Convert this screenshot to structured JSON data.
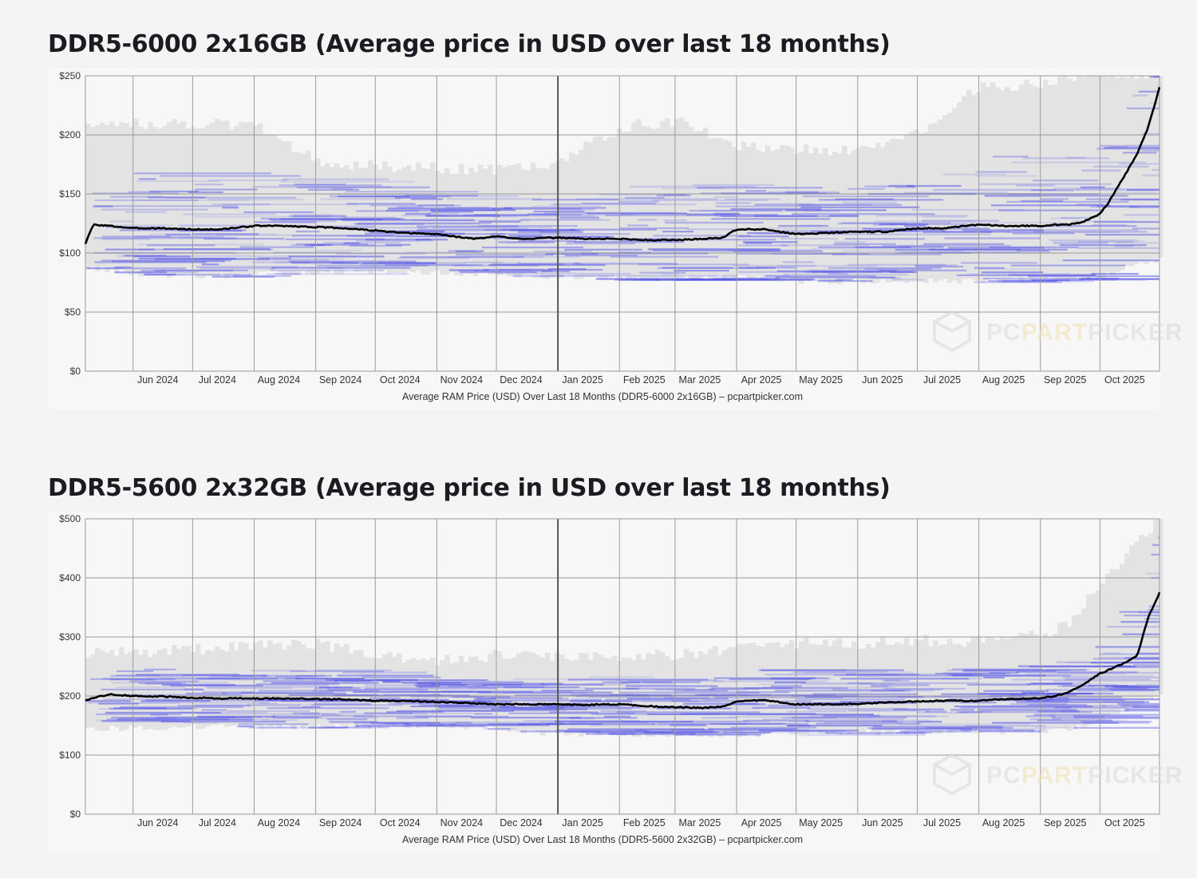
{
  "chart_data": [
    {
      "type": "line",
      "title": "DDR5-6000 2x16GB (Average price in USD over last 18 months)",
      "xlabel": "Average RAM Price (USD) Over Last 18 Months (DDR5-6000 2x16GB) – pcpartpicker.com",
      "ylabel": "",
      "ylim": [
        0,
        250
      ],
      "y_ticks": [
        "$0",
        "$50",
        "$100",
        "$150",
        "$200",
        "$250"
      ],
      "y_tick_values": [
        0,
        50,
        100,
        150,
        200,
        250
      ],
      "x_range": [
        "2024-05-08",
        "2025-10-31"
      ],
      "x_ticks": [
        {
          "date": "2024-06-01",
          "label": "Jun 2024"
        },
        {
          "date": "2024-07-01",
          "label": "Jul 2024"
        },
        {
          "date": "2024-08-01",
          "label": "Aug 2024"
        },
        {
          "date": "2024-09-01",
          "label": "Sep 2024"
        },
        {
          "date": "2024-10-01",
          "label": "Oct 2024"
        },
        {
          "date": "2024-11-01",
          "label": "Nov 2024"
        },
        {
          "date": "2024-12-01",
          "label": "Dec 2024"
        },
        {
          "date": "2025-01-01",
          "label": "Jan 2025"
        },
        {
          "date": "2025-02-01",
          "label": "Feb 2025"
        },
        {
          "date": "2025-03-01",
          "label": "Mar 2025"
        },
        {
          "date": "2025-04-01",
          "label": "Apr 2025"
        },
        {
          "date": "2025-05-01",
          "label": "May 2025"
        },
        {
          "date": "2025-06-01",
          "label": "Jun 2025"
        },
        {
          "date": "2025-07-01",
          "label": "Jul 2025"
        },
        {
          "date": "2025-08-01",
          "label": "Aug 2025"
        },
        {
          "date": "2025-09-01",
          "label": "Sep 2025"
        },
        {
          "date": "2025-10-01",
          "label": "Oct 2025"
        }
      ],
      "grid": true,
      "watermark": "PCPARTPICKER",
      "band_range": {
        "x": [
          "2024-05-08",
          "2024-06-01",
          "2024-07-01",
          "2024-08-01",
          "2024-09-01",
          "2024-10-01",
          "2024-11-01",
          "2024-12-01",
          "2025-01-01",
          "2025-02-01",
          "2025-03-01",
          "2025-04-01",
          "2025-05-01",
          "2025-06-01",
          "2025-07-01",
          "2025-08-01",
          "2025-09-01",
          "2025-09-15",
          "2025-10-01",
          "2025-10-15",
          "2025-10-31"
        ],
        "low": [
          88,
          82,
          80,
          82,
          84,
          84,
          83,
          82,
          80,
          78,
          78,
          80,
          76,
          76,
          76,
          76,
          78,
          78,
          80,
          90,
          95
        ],
        "high": [
          208,
          208,
          208,
          205,
          175,
          172,
          170,
          168,
          175,
          205,
          210,
          190,
          185,
          185,
          200,
          240,
          240,
          248,
          250,
          250,
          250
        ]
      },
      "series": [
        {
          "x": [
            "2024-05-08",
            "2024-05-12",
            "2024-05-20",
            "2024-06-01",
            "2024-06-15",
            "2024-07-01",
            "2024-07-15",
            "2024-08-01",
            "2024-08-15",
            "2024-09-01",
            "2024-09-15",
            "2024-10-01",
            "2024-10-15",
            "2024-11-01",
            "2024-11-10",
            "2024-11-20",
            "2024-12-01",
            "2024-12-15",
            "2025-01-01",
            "2025-01-15",
            "2025-02-01",
            "2025-02-15",
            "2025-03-01",
            "2025-03-15",
            "2025-03-25",
            "2025-04-01",
            "2025-04-15",
            "2025-05-01",
            "2025-05-15",
            "2025-06-01",
            "2025-06-15",
            "2025-07-01",
            "2025-07-15",
            "2025-08-01",
            "2025-08-15",
            "2025-09-01",
            "2025-09-08",
            "2025-09-15",
            "2025-09-22",
            "2025-10-01",
            "2025-10-05",
            "2025-10-10",
            "2025-10-15",
            "2025-10-20",
            "2025-10-25",
            "2025-10-31"
          ],
          "values": [
            108,
            124,
            123,
            121,
            121,
            120,
            120,
            123,
            123,
            122,
            121,
            119,
            117,
            116,
            114,
            112,
            114,
            112,
            113,
            112,
            112,
            111,
            111,
            112,
            113,
            120,
            120,
            116,
            117,
            118,
            118,
            121,
            121,
            124,
            123,
            123,
            124,
            124,
            126,
            133,
            142,
            156,
            170,
            185,
            205,
            240
          ]
        }
      ]
    },
    {
      "type": "line",
      "title": "DDR5-5600 2x32GB (Average price in USD over last 18 months)",
      "xlabel": "Average RAM Price (USD) Over Last 18 Months (DDR5-5600 2x32GB) – pcpartpicker.com",
      "ylabel": "",
      "ylim": [
        0,
        500
      ],
      "y_ticks": [
        "$0",
        "$100",
        "$200",
        "$300",
        "$400",
        "$500"
      ],
      "y_tick_values": [
        0,
        100,
        200,
        300,
        400,
        500
      ],
      "x_range": [
        "2024-05-08",
        "2025-10-31"
      ],
      "x_ticks": [
        {
          "date": "2024-06-01",
          "label": "Jun 2024"
        },
        {
          "date": "2024-07-01",
          "label": "Jul 2024"
        },
        {
          "date": "2024-08-01",
          "label": "Aug 2024"
        },
        {
          "date": "2024-09-01",
          "label": "Sep 2024"
        },
        {
          "date": "2024-10-01",
          "label": "Oct 2024"
        },
        {
          "date": "2024-11-01",
          "label": "Nov 2024"
        },
        {
          "date": "2024-12-01",
          "label": "Dec 2024"
        },
        {
          "date": "2025-01-01",
          "label": "Jan 2025"
        },
        {
          "date": "2025-02-01",
          "label": "Feb 2025"
        },
        {
          "date": "2025-03-01",
          "label": "Mar 2025"
        },
        {
          "date": "2025-04-01",
          "label": "Apr 2025"
        },
        {
          "date": "2025-05-01",
          "label": "May 2025"
        },
        {
          "date": "2025-06-01",
          "label": "Jun 2025"
        },
        {
          "date": "2025-07-01",
          "label": "Jul 2025"
        },
        {
          "date": "2025-08-01",
          "label": "Aug 2025"
        },
        {
          "date": "2025-09-01",
          "label": "Sep 2025"
        },
        {
          "date": "2025-10-01",
          "label": "Oct 2025"
        }
      ],
      "grid": true,
      "watermark": "PCPARTPICKER",
      "band_range": {
        "x": [
          "2024-05-08",
          "2024-06-01",
          "2024-07-01",
          "2024-08-01",
          "2024-09-01",
          "2024-10-01",
          "2024-11-01",
          "2024-12-01",
          "2025-01-01",
          "2025-02-01",
          "2025-03-01",
          "2025-04-01",
          "2025-05-01",
          "2025-06-01",
          "2025-07-01",
          "2025-08-01",
          "2025-09-01",
          "2025-09-15",
          "2025-10-01",
          "2025-10-15",
          "2025-10-31"
        ],
        "low": [
          145,
          145,
          148,
          148,
          148,
          150,
          150,
          145,
          135,
          135,
          135,
          135,
          135,
          138,
          140,
          140,
          140,
          145,
          160,
          180,
          200
        ],
        "high": [
          270,
          270,
          275,
          280,
          285,
          265,
          255,
          265,
          265,
          265,
          265,
          275,
          285,
          285,
          290,
          290,
          300,
          320,
          390,
          440,
          500
        ]
      },
      "series": [
        {
          "x": [
            "2024-05-08",
            "2024-05-20",
            "2024-06-01",
            "2024-06-15",
            "2024-07-01",
            "2024-07-15",
            "2024-08-01",
            "2024-08-15",
            "2024-09-01",
            "2024-09-15",
            "2024-10-01",
            "2024-10-15",
            "2024-11-01",
            "2024-11-15",
            "2024-12-01",
            "2024-12-15",
            "2025-01-01",
            "2025-01-15",
            "2025-02-01",
            "2025-02-15",
            "2025-03-01",
            "2025-03-15",
            "2025-03-25",
            "2025-04-01",
            "2025-04-15",
            "2025-05-01",
            "2025-05-15",
            "2025-06-01",
            "2025-06-15",
            "2025-07-01",
            "2025-07-15",
            "2025-08-01",
            "2025-08-15",
            "2025-09-01",
            "2025-09-08",
            "2025-09-15",
            "2025-09-22",
            "2025-10-01",
            "2025-10-08",
            "2025-10-15",
            "2025-10-20",
            "2025-10-25",
            "2025-10-31"
          ],
          "values": [
            193,
            203,
            200,
            199,
            197,
            196,
            196,
            196,
            195,
            194,
            192,
            192,
            190,
            188,
            186,
            186,
            186,
            185,
            186,
            183,
            181,
            180,
            182,
            191,
            193,
            186,
            186,
            187,
            189,
            191,
            192,
            192,
            195,
            196,
            200,
            206,
            218,
            238,
            248,
            258,
            270,
            330,
            375
          ]
        }
      ]
    }
  ]
}
